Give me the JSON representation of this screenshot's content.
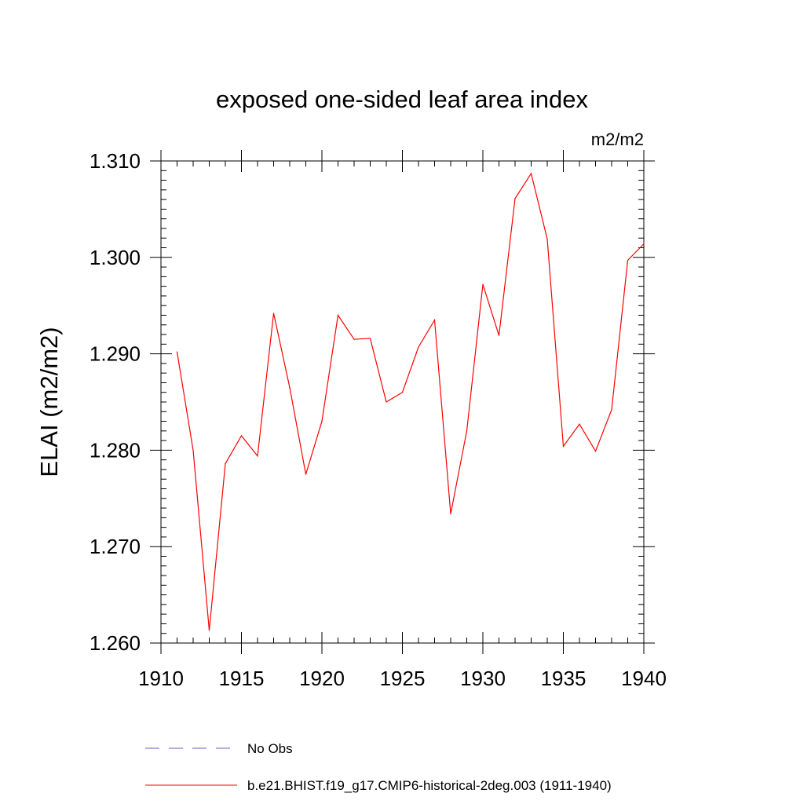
{
  "chart_data": {
    "type": "line",
    "title": "exposed one-sided leaf area index",
    "units_label": "m2/m2",
    "ylabel": "ELAI  (m2/m2)",
    "xlabel": "",
    "xlim": [
      1910,
      1940
    ],
    "ylim": [
      1.26,
      1.31
    ],
    "x_ticks": [
      1910,
      1915,
      1920,
      1925,
      1930,
      1935,
      1940
    ],
    "x_tick_labels": [
      "1910",
      "1915",
      "1920",
      "1925",
      "1930",
      "1935",
      "1940"
    ],
    "y_ticks": [
      1.26,
      1.27,
      1.28,
      1.29,
      1.3,
      1.31
    ],
    "y_tick_labels": [
      "1.260",
      "1.270",
      "1.280",
      "1.290",
      "1.300",
      "1.310"
    ],
    "grid": false,
    "legend_position": "bottom",
    "series": [
      {
        "name": "b.e21.BHIST.f19_g17.CMIP6-historical-2deg.003 (1911-1940)",
        "color": "#ff0000",
        "style": "solid",
        "x": [
          1911,
          1912,
          1913,
          1914,
          1915,
          1916,
          1917,
          1918,
          1919,
          1920,
          1921,
          1922,
          1923,
          1924,
          1925,
          1926,
          1927,
          1928,
          1929,
          1930,
          1931,
          1932,
          1933,
          1934,
          1935,
          1936,
          1937,
          1938,
          1939,
          1940
        ],
        "y": [
          1.2902,
          1.28,
          1.2613,
          1.2786,
          1.2815,
          1.2794,
          1.2942,
          1.2865,
          1.2775,
          1.283,
          1.294,
          1.2915,
          1.2916,
          1.285,
          1.286,
          1.2907,
          1.2935,
          1.2734,
          1.282,
          1.2972,
          1.2919,
          1.3061,
          1.3087,
          1.3019,
          1.2804,
          1.2827,
          1.2799,
          1.2842,
          1.2997,
          1.3014
        ]
      }
    ],
    "legend": [
      {
        "label": "No Obs",
        "color": "#6a5acd",
        "style": "dashed"
      },
      {
        "label": "b.e21.BHIST.f19_g17.CMIP6-historical-2deg.003 (1911-1940)",
        "color": "#ff0000",
        "style": "solid"
      }
    ]
  }
}
